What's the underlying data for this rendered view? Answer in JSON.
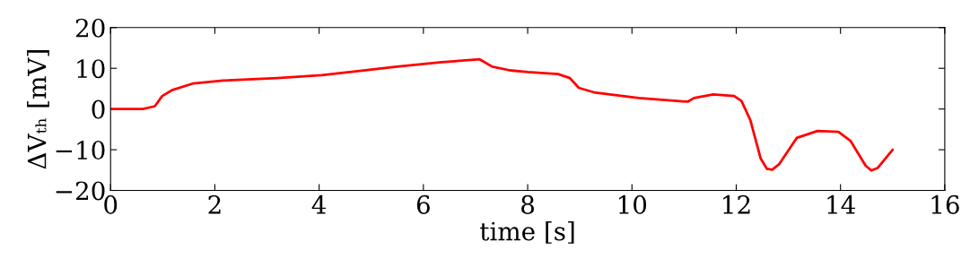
{
  "chart_data": {
    "type": "line",
    "xlabel": "time [s]",
    "ylabel": "ΔVₜₕ [mV]",
    "xlim": [
      0,
      16
    ],
    "ylim": [
      -20,
      20
    ],
    "xticks": [
      0,
      2,
      4,
      6,
      8,
      10,
      12,
      14,
      16
    ],
    "yticks": [
      -20,
      -10,
      0,
      10,
      20
    ],
    "grid": false,
    "marker": "none",
    "line_style": "solid",
    "series": [
      {
        "color": "#ff0000",
        "x": [
          0,
          0.62,
          0.85,
          0.99,
          1.19,
          1.59,
          2.16,
          3.2,
          4.05,
          4.74,
          5.49,
          6.35,
          7.08,
          7.32,
          7.66,
          8.0,
          8.58,
          8.81,
          8.98,
          9.27,
          10.13,
          11.07,
          11.19,
          11.56,
          11.96,
          12.1,
          12.27,
          12.47,
          12.59,
          12.69,
          12.82,
          13.16,
          13.56,
          13.96,
          14.19,
          14.48,
          14.59,
          14.71,
          15.0
        ],
        "values": [
          0,
          0,
          0.7,
          3.2,
          4.7,
          6.3,
          7.0,
          7.6,
          8.3,
          9.3,
          10.4,
          11.5,
          12.2,
          10.4,
          9.5,
          9.1,
          8.6,
          7.6,
          5.2,
          4.1,
          2.7,
          1.8,
          2.7,
          3.6,
          3.2,
          2.0,
          -2.7,
          -12.2,
          -14.7,
          -14.9,
          -13.6,
          -7.1,
          -5.4,
          -5.6,
          -7.8,
          -13.9,
          -15.1,
          -14.5,
          -10.0
        ]
      }
    ]
  }
}
